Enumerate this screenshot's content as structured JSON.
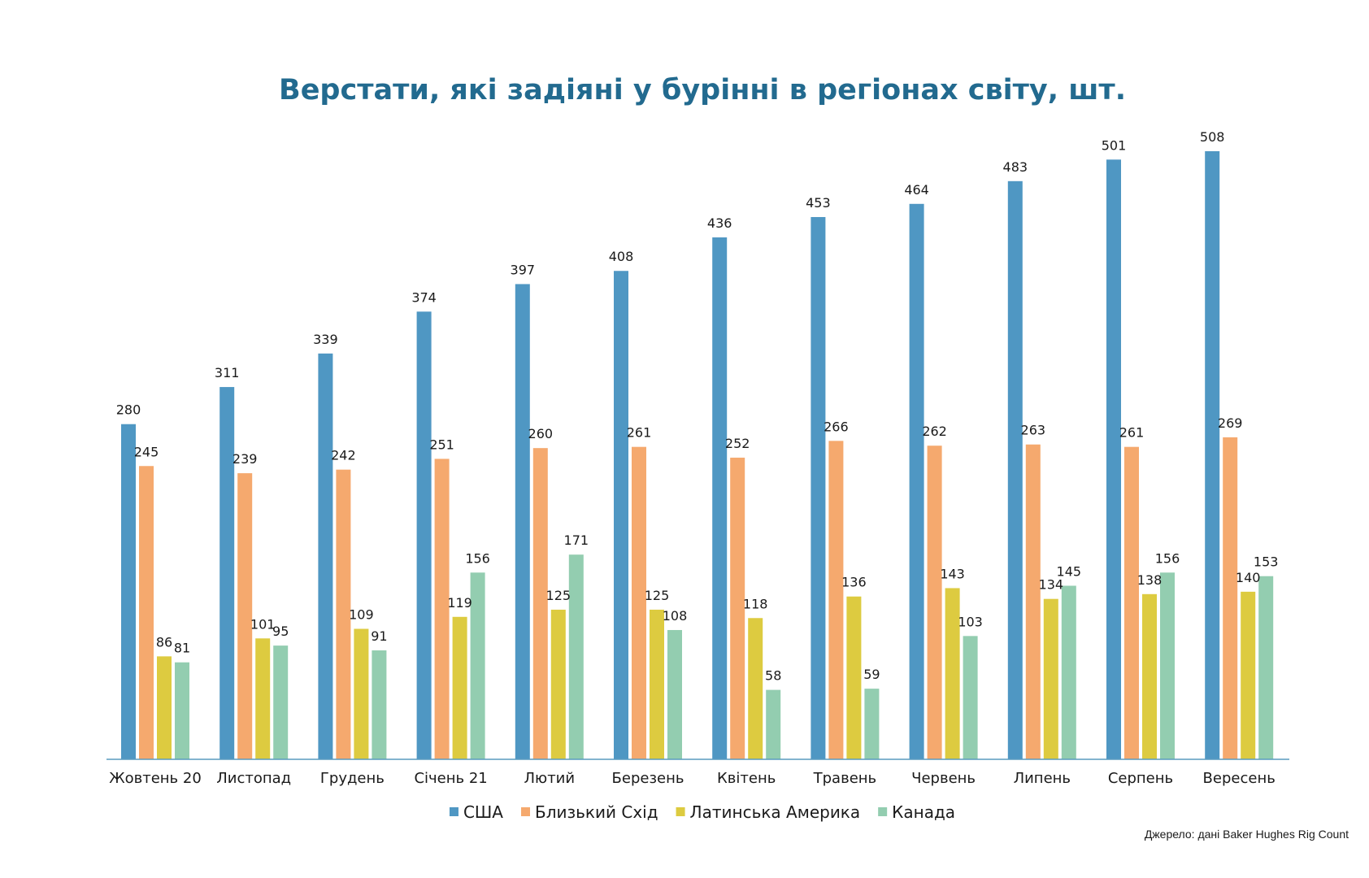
{
  "chart_data": {
    "type": "bar",
    "title": "Верстати, які задіяні у бурінні в регіонах світу, шт.",
    "categories": [
      "Жовтень 20",
      "Листопад",
      "Грудень",
      "Січень 21",
      "Лютий",
      "Березень",
      "Квітень",
      "Травень",
      "Червень",
      "Липень",
      "Серпень",
      "Вересень"
    ],
    "series": [
      {
        "name": "США",
        "color": "#4f97c3",
        "values": [
          280,
          311,
          339,
          374,
          397,
          408,
          436,
          453,
          464,
          483,
          501,
          508
        ]
      },
      {
        "name": "Близький Схід",
        "color": "#f5a96e",
        "values": [
          245,
          239,
          242,
          251,
          260,
          261,
          252,
          266,
          262,
          263,
          261,
          269
        ]
      },
      {
        "name": "Латинська Америка",
        "color": "#ddcb40",
        "values": [
          86,
          101,
          109,
          119,
          125,
          125,
          118,
          136,
          143,
          134,
          138,
          140
        ]
      },
      {
        "name": "Канада",
        "color": "#93cdb0",
        "values": [
          81,
          95,
          91,
          156,
          171,
          108,
          58,
          59,
          103,
          145,
          156,
          153
        ]
      }
    ],
    "ylim": [
      0,
      508
    ],
    "grid": false,
    "legend_position": "bottom",
    "axis_color": "#5a9bbf",
    "source_note": "Джерело: дані Baker Hughes Rig Count"
  }
}
